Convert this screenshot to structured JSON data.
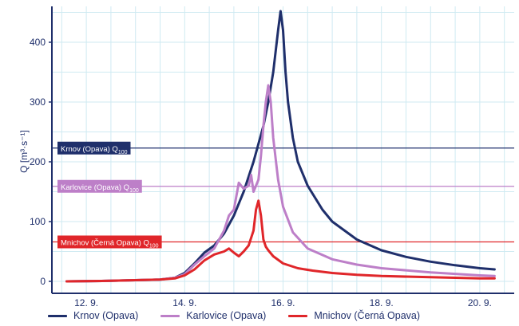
{
  "chart_data": {
    "type": "line",
    "title": "",
    "xlabel": "",
    "ylabel": "Q [m³·s⁻¹]",
    "xlim": [
      11.3,
      20.7
    ],
    "ylim": [
      -20,
      460
    ],
    "xticks": [
      12,
      14,
      16,
      18,
      20
    ],
    "xtick_labels": [
      "12. 9.",
      "14. 9.",
      "16. 9.",
      "18. 9.",
      "20. 9."
    ],
    "yticks": [
      0,
      100,
      200,
      300,
      400
    ],
    "ytick_labels": [
      "0",
      "100",
      "200",
      "300",
      "400"
    ],
    "grid": true,
    "legend_position": "bottom",
    "reference_lines": [
      {
        "name": "Krnov (Opava) Q100",
        "label_main": "Krnov (Opava) Q",
        "label_sub": "100",
        "value": 223,
        "color": "#1f2f6b"
      },
      {
        "name": "Karlovice (Opava) Q100",
        "label_main": "Karlovice (Opava) Q",
        "label_sub": "100",
        "value": 159,
        "color": "#bd7fc8"
      },
      {
        "name": "Mnichov (Černá Opava) Q100",
        "label_main": "Mnichov (Černá Opava) Q",
        "label_sub": "100",
        "value": 66,
        "color": "#e0262a"
      }
    ],
    "series": [
      {
        "name": "Krnov (Opava)",
        "color": "#1f2f6b",
        "x": [
          11.6,
          12.5,
          13.5,
          13.8,
          14.0,
          14.2,
          14.4,
          14.6,
          14.8,
          15.0,
          15.2,
          15.4,
          15.6,
          15.7,
          15.8,
          15.9,
          15.95,
          16.0,
          16.05,
          16.1,
          16.2,
          16.3,
          16.5,
          16.8,
          17.0,
          17.5,
          18.0,
          18.5,
          19.0,
          19.5,
          20.0,
          20.3
        ],
        "y": [
          0,
          1,
          3,
          6,
          14,
          30,
          48,
          60,
          80,
          110,
          150,
          200,
          260,
          300,
          350,
          420,
          452,
          420,
          350,
          300,
          240,
          200,
          160,
          120,
          100,
          70,
          52,
          41,
          33,
          27,
          22,
          20
        ]
      },
      {
        "name": "Karlovice (Opava)",
        "color": "#bd7fc8",
        "x": [
          11.6,
          12.5,
          13.5,
          13.8,
          14.0,
          14.2,
          14.4,
          14.6,
          14.8,
          14.9,
          15.0,
          15.1,
          15.2,
          15.3,
          15.35,
          15.4,
          15.5,
          15.55,
          15.6,
          15.65,
          15.7,
          15.75,
          15.8,
          15.9,
          16.0,
          16.2,
          16.5,
          17.0,
          17.5,
          18.0,
          19.0,
          20.0,
          20.3
        ],
        "y": [
          0,
          1,
          3,
          6,
          12,
          28,
          42,
          55,
          85,
          110,
          120,
          165,
          155,
          160,
          178,
          150,
          170,
          210,
          260,
          300,
          328,
          300,
          240,
          170,
          125,
          82,
          55,
          37,
          28,
          22,
          15,
          10,
          9
        ]
      },
      {
        "name": "Mnichov (Černá Opava)",
        "color": "#e0262a",
        "x": [
          11.6,
          12.5,
          13.5,
          13.8,
          14.0,
          14.2,
          14.4,
          14.6,
          14.8,
          14.9,
          15.0,
          15.1,
          15.2,
          15.3,
          15.4,
          15.45,
          15.5,
          15.55,
          15.6,
          15.65,
          15.7,
          15.8,
          16.0,
          16.3,
          16.6,
          17.0,
          17.5,
          18.0,
          19.0,
          20.0,
          20.3
        ],
        "y": [
          0,
          1,
          3,
          5,
          10,
          20,
          35,
          45,
          50,
          55,
          48,
          42,
          50,
          60,
          85,
          120,
          135,
          110,
          70,
          58,
          52,
          42,
          30,
          22,
          18,
          14,
          11,
          9,
          7,
          5,
          5
        ]
      }
    ]
  }
}
